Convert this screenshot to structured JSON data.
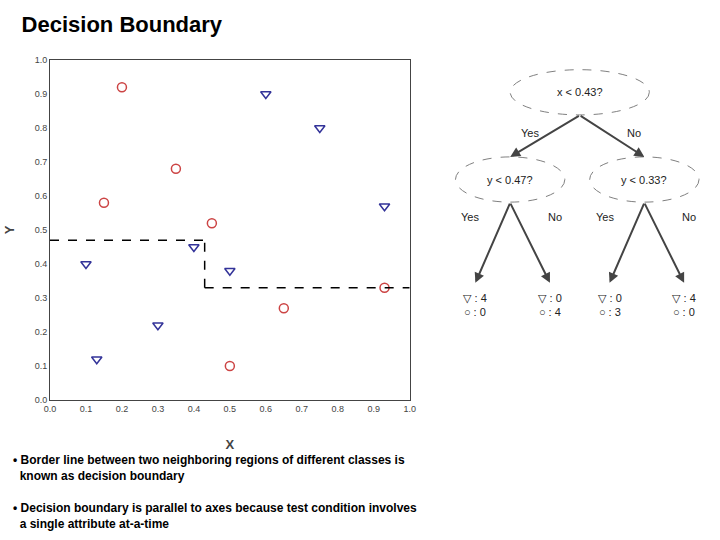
{
  "chart_data": {
    "type": "scatter",
    "title": "Decision Boundary",
    "x_label": "X",
    "y_label": "Y",
    "xlim": [
      0,
      1
    ],
    "ylim": [
      0,
      1
    ],
    "xticks": [
      {
        "value": 0,
        "label": "0.0"
      },
      0.1,
      0.2,
      0.3,
      0.4,
      0.5,
      0.6,
      0.7,
      0.8,
      0.9,
      {
        "value": 1,
        "label": "1.0"
      }
    ],
    "yticks": [
      {
        "value": 0,
        "label": "0.0"
      },
      0.1,
      0.2,
      0.3,
      0.4,
      0.5,
      0.6,
      0.7,
      0.8,
      0.9,
      {
        "value": 1,
        "label": "1.0"
      }
    ],
    "grid": false,
    "series": [
      {
        "type": "scatter",
        "marker": "circle-open",
        "color": "#CC4444",
        "x": [
          0.2,
          0.35,
          0.15,
          0.45,
          0.5,
          0.65,
          0.93
        ],
        "values": [
          0.92,
          0.68,
          0.58,
          0.52,
          0.1,
          0.27,
          0.33
        ]
      },
      {
        "type": "scatter",
        "marker": "triangle-down-open",
        "color": "#333399",
        "x": [
          0.6,
          0.75,
          0.1,
          0.13,
          0.3,
          0.4,
          0.5,
          0.93
        ],
        "values": [
          0.9,
          0.8,
          0.4,
          0.12,
          0.22,
          0.45,
          0.38,
          0.57
        ]
      },
      {
        "type": "line",
        "line_style": "dash",
        "color": "black",
        "x": [
          0.0,
          0.43
        ],
        "values": [
          0.47,
          0.47
        ]
      },
      {
        "type": "line",
        "line_style": "dash",
        "color": "black",
        "x": [
          0.43,
          1.0
        ],
        "values": [
          0.33,
          0.33
        ]
      },
      {
        "type": "line",
        "line_style": "dash",
        "color": "black",
        "x": [
          0.43,
          0.43
        ],
        "values": [
          0.33,
          0.47
        ]
      }
    ],
    "annotations": [
      "x < 0.43?",
      "Yes",
      "No",
      "y < 0.47?",
      "Yes",
      "No",
      "y < 0.33?",
      "Yes",
      "No",
      "▽ : 4\n○ : 0",
      "▽ : 0\n○ : 4",
      "▽ : 0\n○ : 3",
      "▽ : 4\n○ : 0",
      "• Border line between two neighboring regions of different classes is\n  known as decision boundary",
      "• Decision boundary is parallel to axes because test condition involves\n  a single attribute at-a-time"
    ]
  }
}
